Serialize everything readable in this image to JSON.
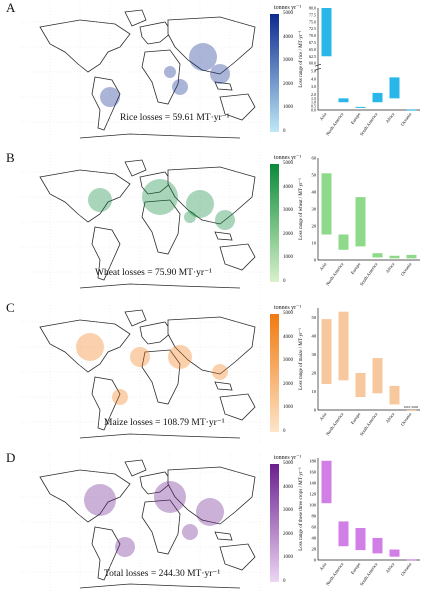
{
  "unit_label": "tonnes yr⁻¹",
  "colorbar_ticks": [
    "5000",
    "4000",
    "3000",
    "2000",
    "1000",
    "0"
  ],
  "regions": [
    "Asia",
    "North America",
    "Europe",
    "South America",
    "Africa",
    "Oceania"
  ],
  "panels": [
    {
      "letter": "A",
      "loss_text": "Rice losses = 59.61 MT·yr⁻¹",
      "gradient_top": "#0d2a8f",
      "gradient_bottom": "#bfe8f7",
      "range_color": "#29b6e8",
      "ylabel": "Loss range of rice / MT·yr⁻¹",
      "ytick_labels": [
        "80.0",
        "77.5",
        "75.0",
        "72.5",
        "70.0",
        "67.5",
        "65.0",
        "62.5",
        "60.0",
        "5.0",
        "4.0",
        "3.0",
        "2.0",
        "1.5",
        "1.0",
        "0.5",
        "0.0"
      ],
      "note": ""
    },
    {
      "letter": "B",
      "loss_text": "Wheat losses = 75.90 MT·yr⁻¹",
      "gradient_top": "#0a8a3a",
      "gradient_bottom": "#d8f2c8",
      "range_color": "#8fd98a",
      "ylabel": "Loss range of wheat / MT·yr⁻¹",
      "ytick_labels": [
        "60",
        "50",
        "40",
        "30",
        "20",
        "10",
        "0"
      ],
      "note": ""
    },
    {
      "letter": "C",
      "loss_text": "Maize losses = 108.79 MT·yr⁻¹",
      "gradient_top": "#f07a10",
      "gradient_bottom": "#fde4c8",
      "range_color": "#f7c79e",
      "ylabel": "Loss range of maize / MT·yr⁻¹",
      "ytick_labels": [
        "50",
        "40",
        "30",
        "20",
        "10",
        "0"
      ],
      "note": "0.02~0.06"
    },
    {
      "letter": "D",
      "loss_text": "Total losses = 244.30 MT·yr⁻¹",
      "gradient_top": "#6a1f8f",
      "gradient_bottom": "#ecd6f2",
      "range_color": "#d17fe6",
      "ylabel": "Loss range of these three crops / MT·yr⁻¹",
      "ytick_labels": [
        "180",
        "160",
        "140",
        "120",
        "100",
        "80",
        "60",
        "40",
        "20",
        "0"
      ],
      "note": ""
    }
  ],
  "chart_data": [
    {
      "type": "bar",
      "title": "",
      "ylabel": "Loss range of rice / MT·yr⁻¹",
      "categories": [
        "Asia",
        "North America",
        "Europe",
        "South America",
        "Africa",
        "Oceania"
      ],
      "ranges": [
        [
          62.5,
          80.0
        ],
        [
          1.0,
          1.5
        ],
        [
          0.3,
          0.4
        ],
        [
          1.0,
          2.2
        ],
        [
          1.5,
          4.2
        ],
        [
          0.0,
          0.05
        ]
      ],
      "broken_axis": true
    },
    {
      "type": "bar",
      "title": "",
      "ylabel": "Loss range of wheat / MT·yr⁻¹",
      "categories": [
        "Asia",
        "North America",
        "Europe",
        "South America",
        "Africa",
        "Oceania"
      ],
      "ranges": [
        [
          15,
          51
        ],
        [
          6,
          15
        ],
        [
          8,
          37
        ],
        [
          1.5,
          4
        ],
        [
          1,
          2.5
        ],
        [
          1,
          3
        ]
      ],
      "ylim": [
        0,
        60
      ]
    },
    {
      "type": "bar",
      "title": "",
      "ylabel": "Loss range of maize / MT·yr⁻¹",
      "categories": [
        "Asia",
        "North America",
        "Europe",
        "South America",
        "Africa",
        "Oceania"
      ],
      "ranges": [
        [
          14,
          49
        ],
        [
          16,
          53
        ],
        [
          7,
          20
        ],
        [
          9,
          28
        ],
        [
          3,
          13
        ],
        [
          0.02,
          0.06
        ]
      ],
      "ylim": [
        0,
        55
      ]
    },
    {
      "type": "bar",
      "title": "",
      "ylabel": "Loss range of these three crops / MT·yr⁻¹",
      "categories": [
        "Asia",
        "North America",
        "Europe",
        "South America",
        "Africa",
        "Oceania"
      ],
      "ranges": [
        [
          103,
          180
        ],
        [
          25,
          70
        ],
        [
          18,
          58
        ],
        [
          12,
          40
        ],
        [
          6,
          19
        ],
        [
          0.3,
          1.2
        ]
      ],
      "ylim": [
        0,
        185
      ]
    }
  ]
}
